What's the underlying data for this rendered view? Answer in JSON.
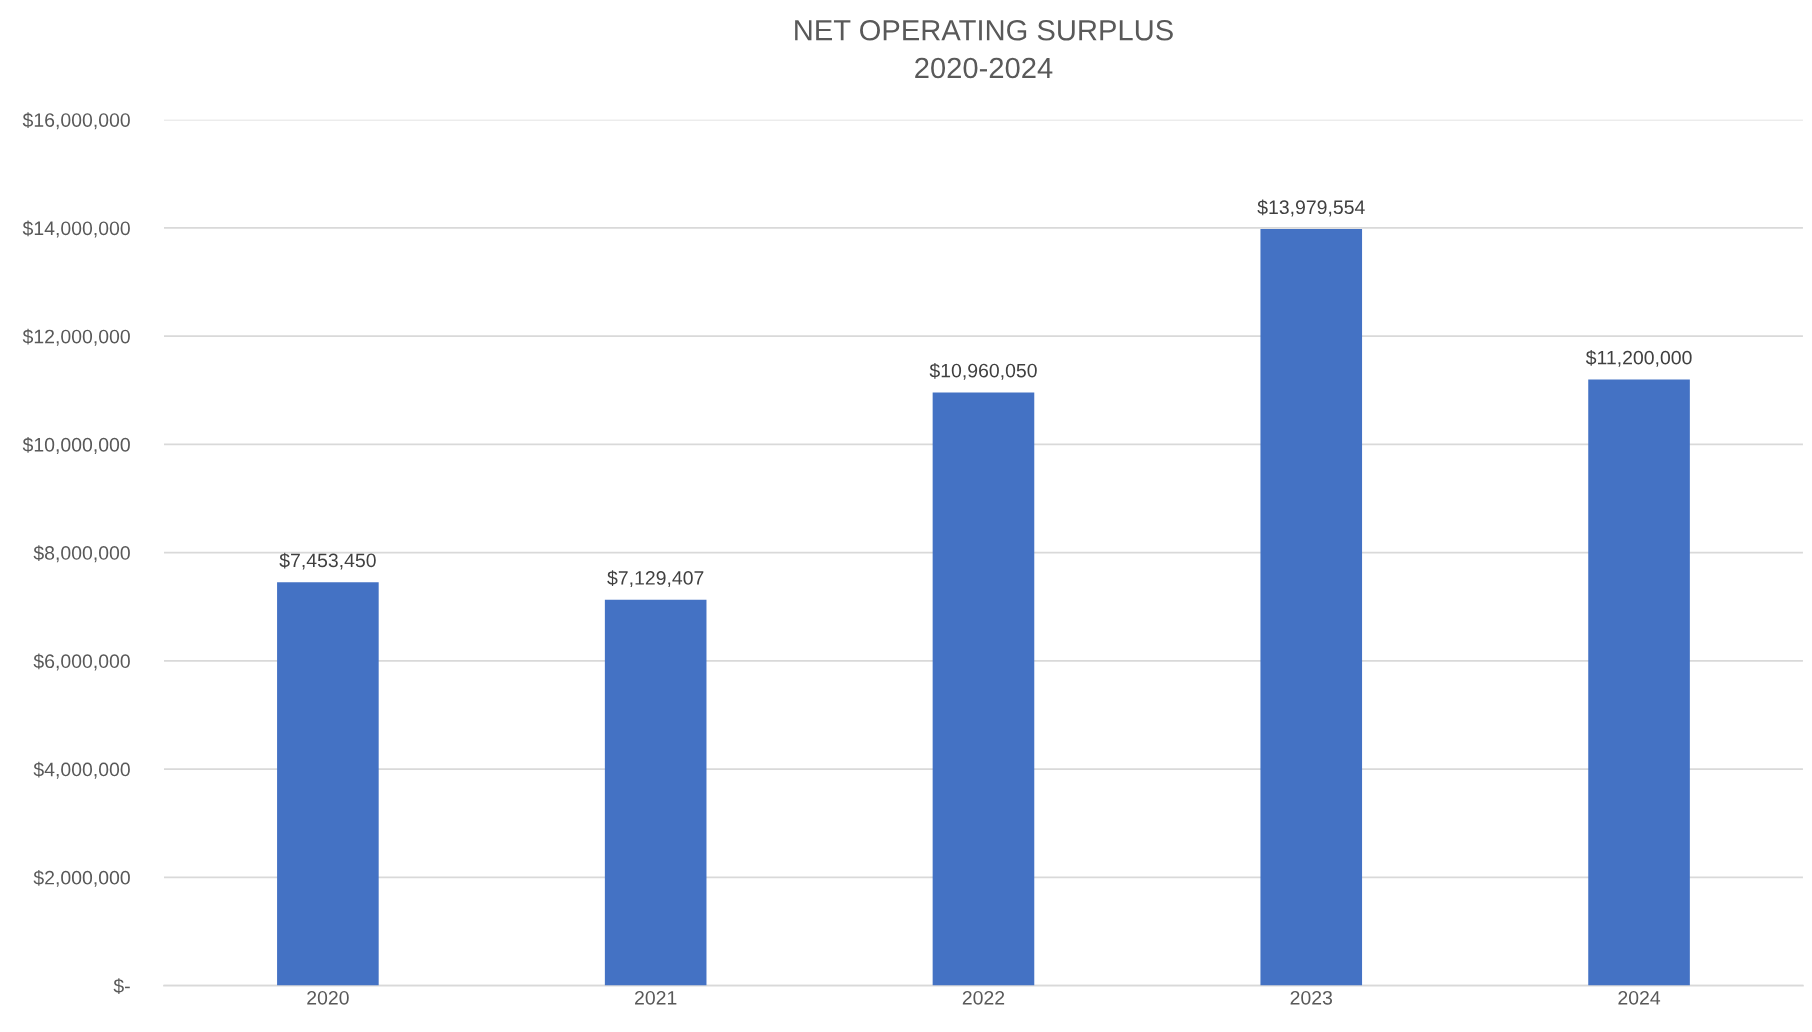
{
  "chart_data": {
    "type": "bar",
    "title": "NET OPERATING SURPLUS\n2020-2024",
    "categories": [
      "2020",
      "2021",
      "2022",
      "2023",
      "2024"
    ],
    "values": [
      7453450,
      7129407,
      10960050,
      13979554,
      11200000
    ],
    "value_labels": [
      "$7,453,450",
      "$7,129,407",
      "$10,960,050",
      "$13,979,554",
      "$11,200,000"
    ],
    "color": "#4472c4",
    "ylim": [
      0,
      16000000
    ],
    "yticks": [
      {
        "value": 0,
        "label": "$-"
      },
      {
        "value": 2000000,
        "label": "$2,000,000"
      },
      {
        "value": 4000000,
        "label": "$4,000,000"
      },
      {
        "value": 6000000,
        "label": "$6,000,000"
      },
      {
        "value": 8000000,
        "label": "$8,000,000"
      },
      {
        "value": 10000000,
        "label": "$10,000,000"
      },
      {
        "value": 12000000,
        "label": "$12,000,000"
      },
      {
        "value": 14000000,
        "label": "$14,000,000"
      },
      {
        "value": 16000000,
        "label": "$16,000,000"
      }
    ],
    "grid": "y",
    "legend": false
  }
}
